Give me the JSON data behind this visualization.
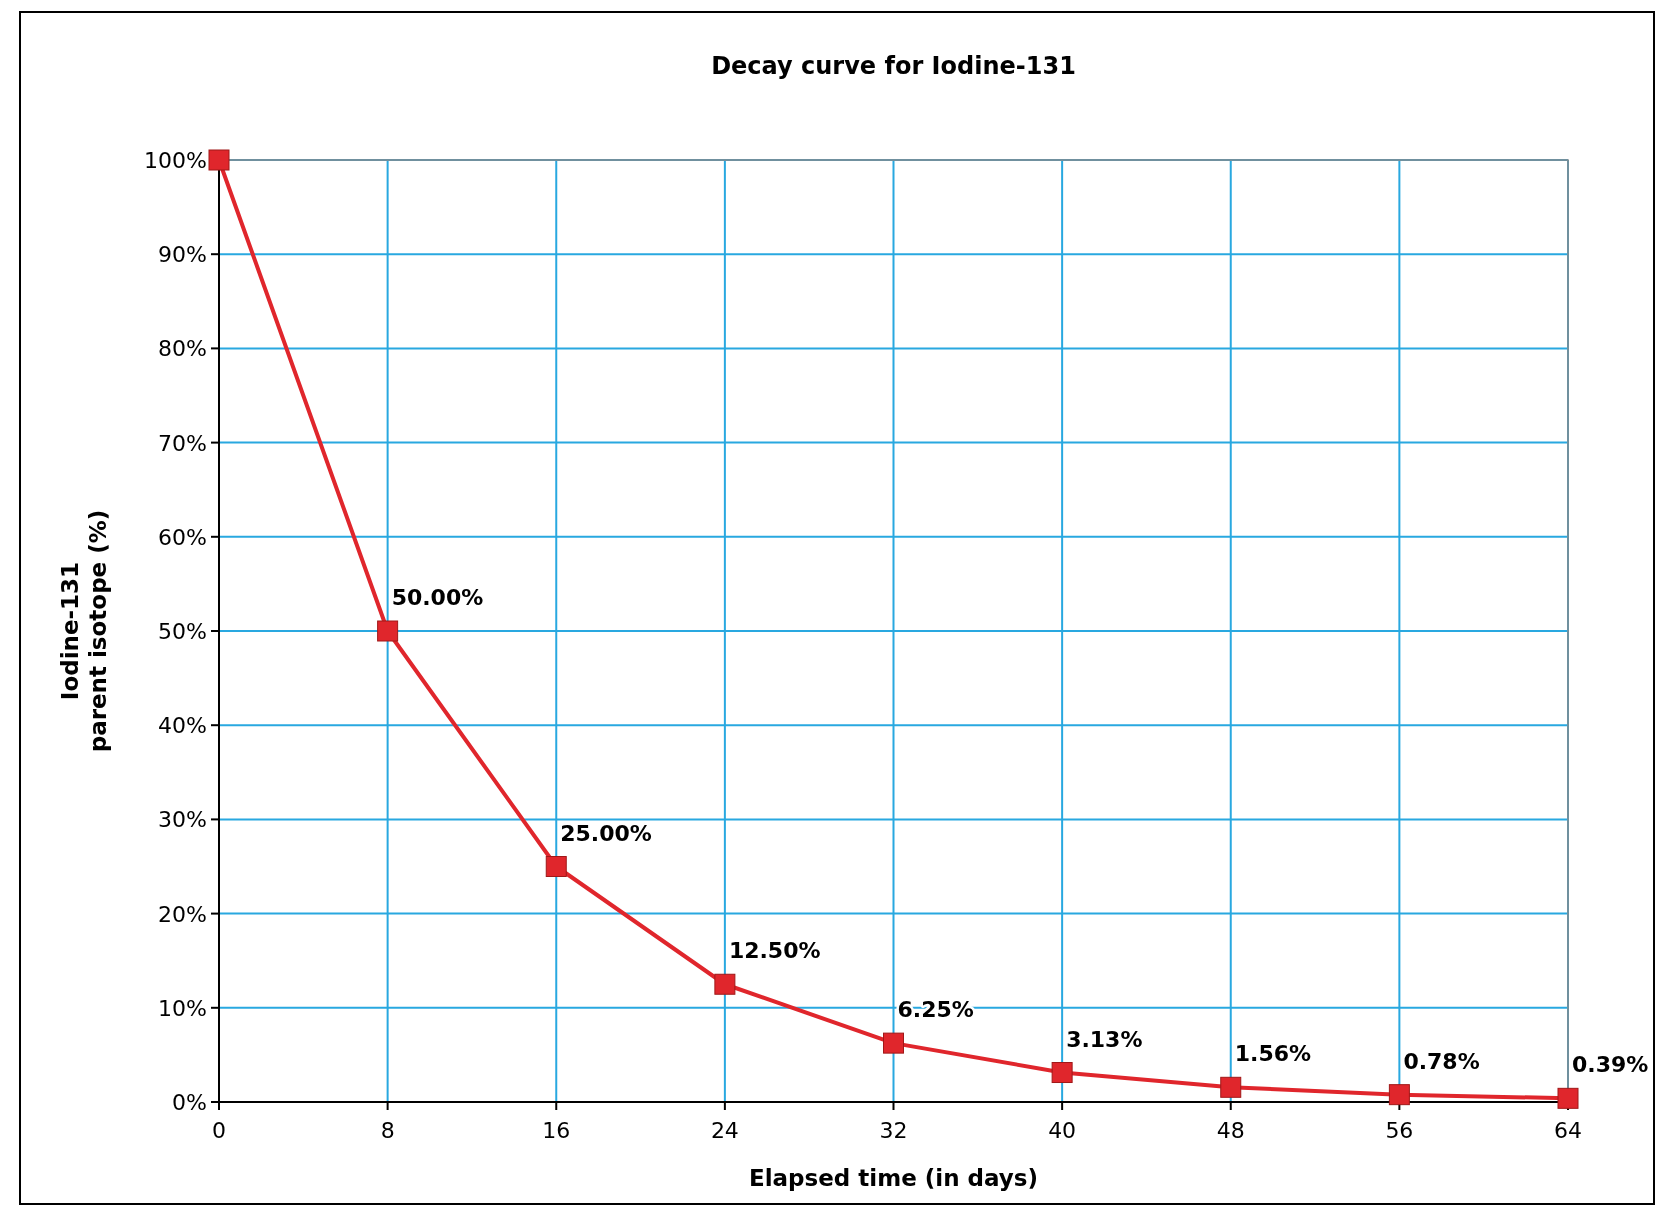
{
  "chart_data": {
    "type": "line",
    "title": "Decay curve for Iodine-131",
    "xlabel": "Elapsed time (in days)",
    "ylabel": "Iodine-131\nparent isotope (%)",
    "x": [
      0,
      8,
      16,
      24,
      32,
      40,
      48,
      56,
      64
    ],
    "series": [
      {
        "color": "#e0262c",
        "values": [
          100,
          50,
          25,
          12.5,
          6.25,
          3.13,
          1.56,
          0.78,
          0.39
        ],
        "value_labels": [
          null,
          "50.00%",
          "25.00%",
          "12.50%",
          "6.25%",
          "3.13%",
          "1.56%",
          "0.78%",
          "0.39%"
        ]
      }
    ],
    "xlim": [
      0,
      64
    ],
    "xticks": [
      0,
      8,
      16,
      24,
      32,
      40,
      48,
      56,
      64
    ],
    "ylim": [
      0,
      100
    ],
    "yticks": [
      {
        "value": 0,
        "label": "0%"
      },
      {
        "value": 10,
        "label": "10%"
      },
      {
        "value": 20,
        "label": "20%"
      },
      {
        "value": 30,
        "label": "30%"
      },
      {
        "value": 40,
        "label": "40%"
      },
      {
        "value": 50,
        "label": "50%"
      },
      {
        "value": 60,
        "label": "60%"
      },
      {
        "value": 70,
        "label": "70%"
      },
      {
        "value": 80,
        "label": "80%"
      },
      {
        "value": 90,
        "label": "90%"
      },
      {
        "value": 100,
        "label": "100%"
      }
    ],
    "grid": true,
    "marker": "square",
    "line_style": "solid"
  }
}
